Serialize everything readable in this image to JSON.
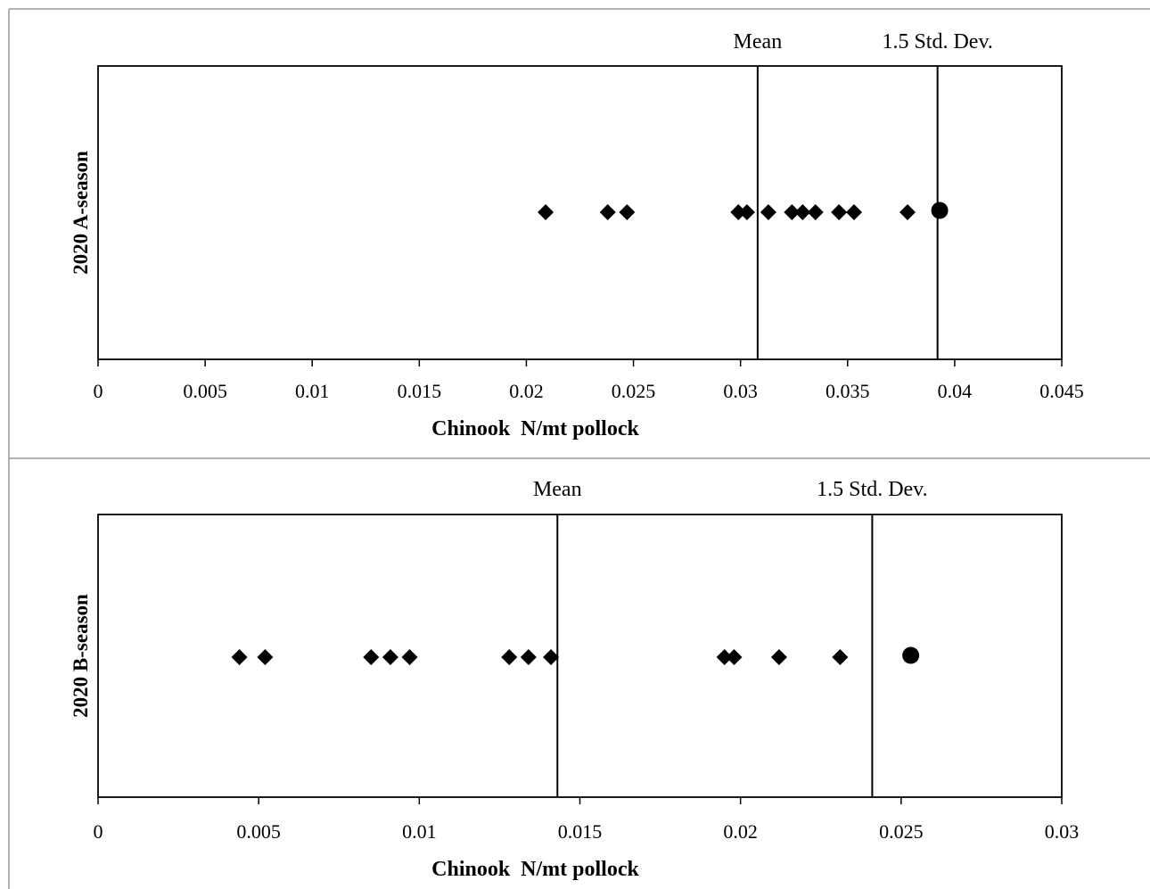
{
  "chart_data": [
    {
      "type": "scatter",
      "ylabel": "2020 A-season",
      "xlabel": "Chinook  N/mt pollock",
      "xlim": [
        0,
        0.045
      ],
      "xticks": [
        0,
        0.005,
        0.01,
        0.015,
        0.02,
        0.025,
        0.03,
        0.035,
        0.04,
        0.045
      ],
      "xtick_labels": [
        "0",
        "0.005",
        "0.01",
        "0.015",
        "0.02",
        "0.025",
        "0.03",
        "0.035",
        "0.04",
        "0.045"
      ],
      "reference_lines": [
        {
          "label": "Mean",
          "x": 0.0308
        },
        {
          "label": "1.5 Std. Dev.",
          "x": 0.0392
        }
      ],
      "diamond_points": [
        0.0209,
        0.0238,
        0.0247,
        0.0299,
        0.0303,
        0.0313,
        0.0324,
        0.0329,
        0.0335,
        0.0346,
        0.0353,
        0.0378
      ],
      "circle_points": [
        0.0393
      ],
      "grid": false
    },
    {
      "type": "scatter",
      "ylabel": "2020 B-season",
      "xlabel": "Chinook  N/mt pollock",
      "xlim": [
        0,
        0.03
      ],
      "xticks": [
        0,
        0.005,
        0.01,
        0.015,
        0.02,
        0.025,
        0.03
      ],
      "xtick_labels": [
        "0",
        "0.005",
        "0.01",
        "0.015",
        "0.02",
        "0.025",
        "0.03"
      ],
      "reference_lines": [
        {
          "label": "Mean",
          "x": 0.0143
        },
        {
          "label": "1.5 Std. Dev.",
          "x": 0.0241
        }
      ],
      "diamond_points": [
        0.0044,
        0.0052,
        0.0085,
        0.0091,
        0.0097,
        0.0128,
        0.0134,
        0.0141,
        0.0195,
        0.0198,
        0.0212,
        0.0231
      ],
      "circle_points": [
        0.0253
      ],
      "grid": false
    }
  ]
}
